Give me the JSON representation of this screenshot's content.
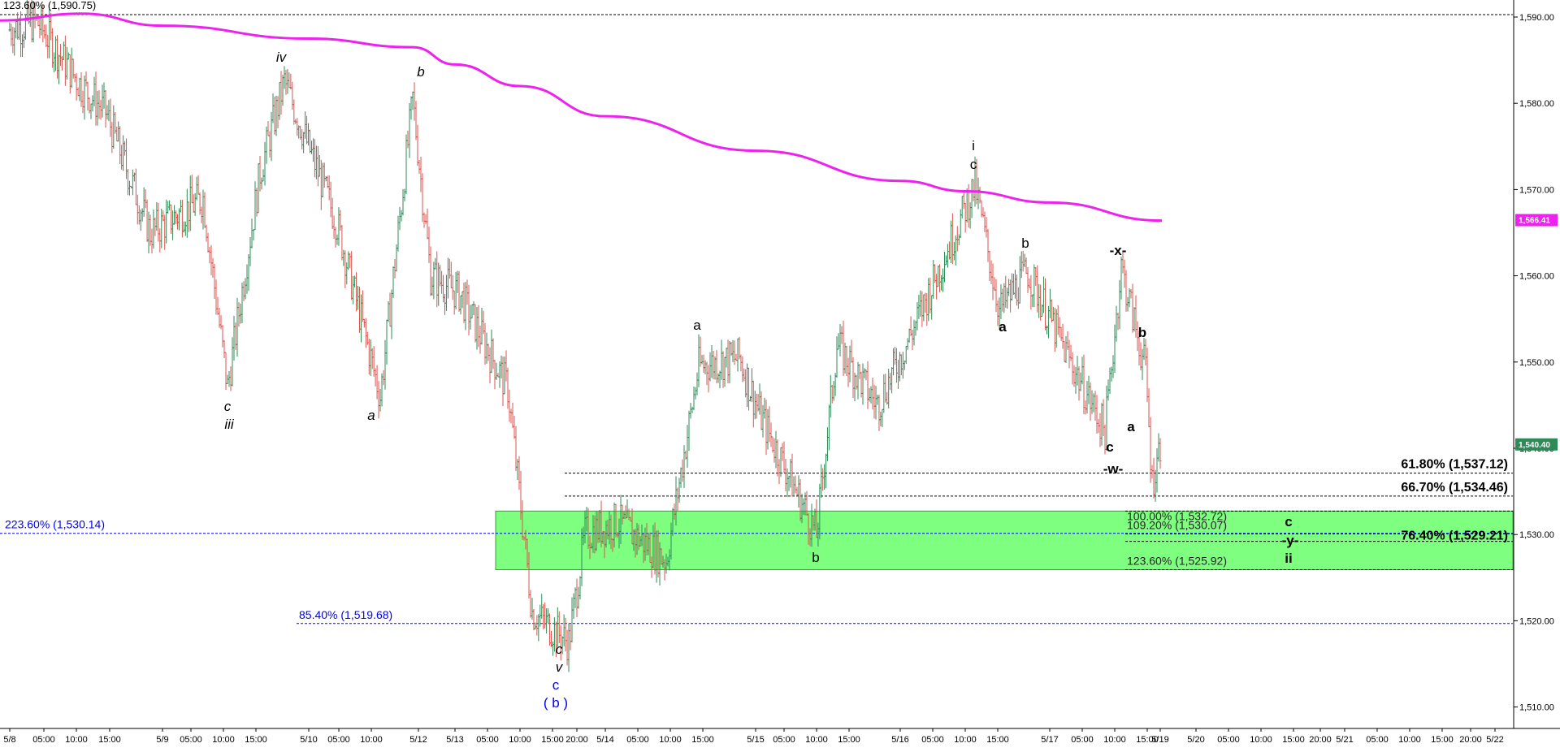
{
  "header": {
    "text": "123.60% (1,590.75)",
    "color": "#000000"
  },
  "colors": {
    "up_bar": "#2e8b57",
    "down_bar": "#d9534f",
    "moving_average": "#ee22ee",
    "zone_fill": "#7fff7f",
    "blue_text": "#0000ff",
    "last_price_badge": "#2e8b57",
    "ma_price_badge": "#ee22ee"
  },
  "price_axis": {
    "ticks": [
      "1,590.00",
      "1,580.00",
      "1,570.00",
      "1,560.00",
      "1,550.00",
      "1,540.00",
      "1,530.00",
      "1,520.00",
      "1,510.00"
    ],
    "last_price_label": "1,540.40",
    "ma_price_label": "1,566.41"
  },
  "time_axis": {
    "labels": [
      "5/8",
      "05:00",
      "10:00",
      "15:00",
      "5/9",
      "05:00",
      "10:00",
      "15:00",
      "5/10",
      "05:00",
      "10:00",
      "5/12",
      "5/13",
      "05:00",
      "10:00",
      "15:00",
      "20:00",
      "5/14",
      "05:00",
      "10:00",
      "15:00",
      "5/15",
      "05:00",
      "10:00",
      "15:00",
      "5/16",
      "05:00",
      "10:00",
      "15:00",
      "5/17",
      "05:00",
      "10:00",
      "15:00",
      "5/19",
      "5/20",
      "05:00",
      "10:00",
      "15:00",
      "20:00",
      "5/21",
      "05:00",
      "10:00",
      "15:00",
      "20:00",
      "5/22"
    ]
  },
  "fib_levels": [
    {
      "label": "223.60% (1,530.14)",
      "price": 1530.14,
      "style": "blue"
    },
    {
      "label": "85.40% (1,519.68)",
      "price": 1519.68,
      "style": "blue"
    },
    {
      "label": "61.80% (1,537.12)",
      "price": 1537.12,
      "style": "bold"
    },
    {
      "label": "66.70% (1,534.46)",
      "price": 1534.46,
      "style": "bold"
    },
    {
      "label": "100.00% (1,532.72)",
      "price": 1532.72,
      "style": "normal"
    },
    {
      "label": "109.20% (1,530.07)",
      "price": 1530.07,
      "style": "normal"
    },
    {
      "label": "76.40% (1,529.21)",
      "price": 1529.21,
      "style": "bold"
    },
    {
      "label": "123.60% (1,525.92)",
      "price": 1525.92,
      "style": "normal"
    }
  ],
  "wave_labels": [
    {
      "text": "iv",
      "style": "italic"
    },
    {
      "text": "b",
      "style": "italic"
    },
    {
      "text": "c",
      "style": "italic"
    },
    {
      "text": "iii",
      "style": "italic"
    },
    {
      "text": "a",
      "style": "italic"
    },
    {
      "text": "c",
      "style": "italic"
    },
    {
      "text": "v",
      "style": "italic"
    },
    {
      "text": "c",
      "style": "blue"
    },
    {
      "text": "( b )",
      "style": "blue"
    },
    {
      "text": "a",
      "style": "normal"
    },
    {
      "text": "b",
      "style": "normal"
    },
    {
      "text": "i",
      "style": "normal"
    },
    {
      "text": "c",
      "style": "normal"
    },
    {
      "text": "b",
      "style": "normal"
    },
    {
      "text": "a",
      "style": "normal"
    },
    {
      "text": "-x-",
      "style": "normal"
    },
    {
      "text": "b",
      "style": "normal"
    },
    {
      "text": "a",
      "style": "normal"
    },
    {
      "text": "c",
      "style": "normal"
    },
    {
      "text": "-w-",
      "style": "normal"
    },
    {
      "text": "c",
      "style": "normal"
    },
    {
      "text": "-y-",
      "style": "normal"
    },
    {
      "text": "ii",
      "style": "normal"
    }
  ],
  "chart_data": {
    "type": "bar",
    "series": [
      {
        "kind": "ohlc",
        "x_start": "5/8",
        "keypoints": [
          {
            "x": "5/8",
            "price": 1588.5
          },
          {
            "x": "05:00",
            "price": 1589.5
          },
          {
            "x": "10:00",
            "price": 1582.0
          },
          {
            "x": "15:00",
            "price": 1579.0
          },
          {
            "x": "5/9",
            "price": 1565.0
          },
          {
            "x": "05:00",
            "price": 1569.0
          },
          {
            "x": "10:00",
            "price": 1547.0
          },
          {
            "x": "15:00",
            "price": 1572.0
          },
          {
            "x": "5/10",
            "price": 1582.5
          },
          {
            "x": "05:00",
            "price": 1566.0
          },
          {
            "x": "10:00",
            "price": 1546.0
          },
          {
            "x": "5/12",
            "price": 1580.5
          },
          {
            "x": "5/13",
            "price": 1560.0
          },
          {
            "x": "05:00",
            "price": 1558.0
          },
          {
            "x": "10:00",
            "price": 1547.0
          },
          {
            "x": "15:00",
            "price": 1521.0
          },
          {
            "x": "20:00",
            "price": 1517.5
          },
          {
            "x": "5/14",
            "price": 1530.0
          },
          {
            "x": "05:00",
            "price": 1531.5
          },
          {
            "x": "10:00",
            "price": 1527.0
          },
          {
            "x": "15:00",
            "price": 1549.5
          },
          {
            "x": "5/15",
            "price": 1550.5
          },
          {
            "x": "05:00",
            "price": 1544.0
          },
          {
            "x": "10:00",
            "price": 1530.0
          },
          {
            "x": "15:00",
            "price": 1552.0
          },
          {
            "x": "5/16",
            "price": 1545.0
          },
          {
            "x": "05:00",
            "price": 1554.0
          },
          {
            "x": "10:00",
            "price": 1570.5
          },
          {
            "x": "15:00",
            "price": 1556.0
          },
          {
            "x": "5/17",
            "price": 1560.5
          },
          {
            "x": "05:00",
            "price": 1551.5
          },
          {
            "x": "10:00",
            "price": 1542.0
          },
          {
            "x": "10:00",
            "price": 1561.0
          },
          {
            "x": "15:00",
            "price": 1549.0
          },
          {
            "x": "5/19",
            "price": 1536.0
          },
          {
            "x": "5/19",
            "price": 1540.4
          }
        ]
      },
      {
        "kind": "moving_average",
        "points": [
          {
            "x": "5/8",
            "price": 1589.6
          },
          {
            "x": "10:00",
            "price": 1590.4
          },
          {
            "x": "5/9",
            "price": 1589.0
          },
          {
            "x": "5/10",
            "price": 1587.5
          },
          {
            "x": "5/12",
            "price": 1586.5
          },
          {
            "x": "5/13",
            "price": 1584.5
          },
          {
            "x": "10:00",
            "price": 1582.0
          },
          {
            "x": "5/14",
            "price": 1578.5
          },
          {
            "x": "5/15",
            "price": 1574.5
          },
          {
            "x": "5/16",
            "price": 1571.0
          },
          {
            "x": "10:00",
            "price": 1569.8
          },
          {
            "x": "5/17",
            "price": 1568.5
          },
          {
            "x": "5/19",
            "price": 1566.4
          }
        ]
      }
    ],
    "zone": {
      "from": 1525.92,
      "to": 1532.72
    },
    "ylim": [
      1505,
      1593
    ],
    "grid": false,
    "title": "",
    "xlabel": "",
    "ylabel": ""
  }
}
